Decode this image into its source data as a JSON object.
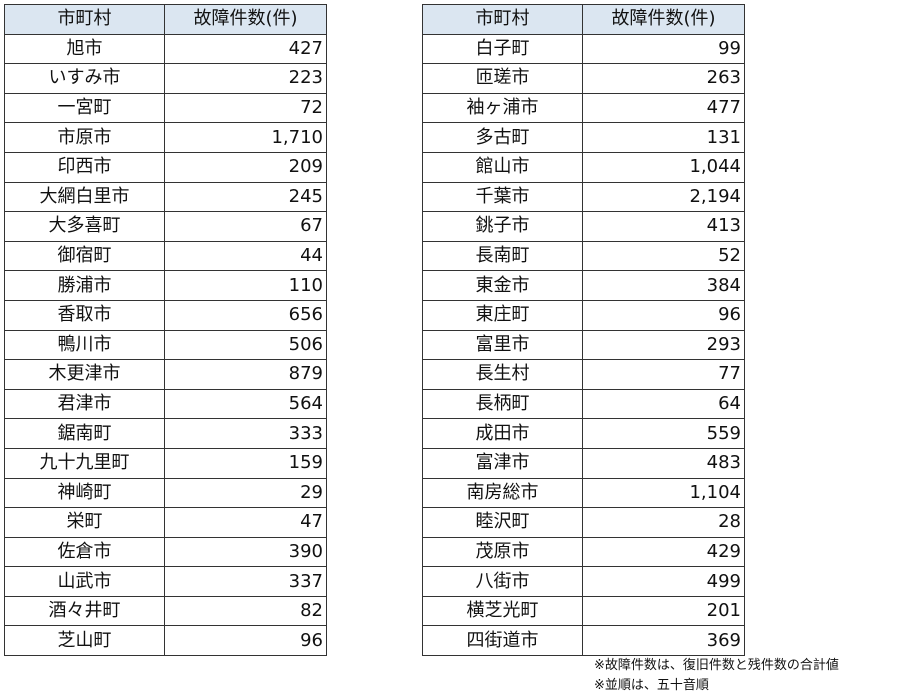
{
  "headers": {
    "municipality": "市町村",
    "count": "故障件数(件)"
  },
  "left": [
    {
      "name": "旭市",
      "count": "427"
    },
    {
      "name": "いすみ市",
      "count": "223"
    },
    {
      "name": "一宮町",
      "count": "72"
    },
    {
      "name": "市原市",
      "count": "1,710"
    },
    {
      "name": "印西市",
      "count": "209"
    },
    {
      "name": "大網白里市",
      "count": "245"
    },
    {
      "name": "大多喜町",
      "count": "67"
    },
    {
      "name": "御宿町",
      "count": "44"
    },
    {
      "name": "勝浦市",
      "count": "110"
    },
    {
      "name": "香取市",
      "count": "656"
    },
    {
      "name": "鴨川市",
      "count": "506"
    },
    {
      "name": "木更津市",
      "count": "879"
    },
    {
      "name": "君津市",
      "count": "564"
    },
    {
      "name": "鋸南町",
      "count": "333"
    },
    {
      "name": "九十九里町",
      "count": "159"
    },
    {
      "name": "神崎町",
      "count": "29"
    },
    {
      "name": "栄町",
      "count": "47"
    },
    {
      "name": "佐倉市",
      "count": "390"
    },
    {
      "name": "山武市",
      "count": "337"
    },
    {
      "name": "酒々井町",
      "count": "82"
    },
    {
      "name": "芝山町",
      "count": "96"
    }
  ],
  "right": [
    {
      "name": "白子町",
      "count": "99"
    },
    {
      "name": "匝瑳市",
      "count": "263"
    },
    {
      "name": "袖ヶ浦市",
      "count": "477"
    },
    {
      "name": "多古町",
      "count": "131"
    },
    {
      "name": "館山市",
      "count": "1,044"
    },
    {
      "name": "千葉市",
      "count": "2,194"
    },
    {
      "name": "銚子市",
      "count": "413"
    },
    {
      "name": "長南町",
      "count": "52"
    },
    {
      "name": "東金市",
      "count": "384"
    },
    {
      "name": "東庄町",
      "count": "96"
    },
    {
      "name": "富里市",
      "count": "293"
    },
    {
      "name": "長生村",
      "count": "77"
    },
    {
      "name": "長柄町",
      "count": "64"
    },
    {
      "name": "成田市",
      "count": "559"
    },
    {
      "name": "富津市",
      "count": "483"
    },
    {
      "name": "南房総市",
      "count": "1,104"
    },
    {
      "name": "睦沢町",
      "count": "28"
    },
    {
      "name": "茂原市",
      "count": "429"
    },
    {
      "name": "八街市",
      "count": "499"
    },
    {
      "name": "横芝光町",
      "count": "201"
    },
    {
      "name": "四街道市",
      "count": "369"
    }
  ],
  "notes": {
    "line1": "※故障件数は、復旧件数と残件数の合計値",
    "line2": "※並順は、五十音順"
  }
}
